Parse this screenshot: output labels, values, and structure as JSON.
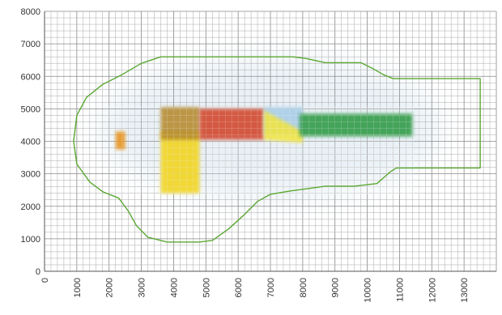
{
  "chart_data": {
    "type": "scatter",
    "title": "",
    "xlabel": "",
    "ylabel": "",
    "xlim": [
      0,
      14000
    ],
    "ylim": [
      0,
      8000
    ],
    "x_ticks": [
      "0",
      "1000",
      "2000",
      "3000",
      "4000",
      "5000",
      "6000",
      "7000",
      "8000",
      "9000",
      "10000",
      "11000",
      "12000",
      "13000"
    ],
    "y_ticks": [
      "0",
      "1000",
      "2000",
      "3000",
      "4000",
      "5000",
      "6000",
      "7000",
      "8000"
    ],
    "grid": true,
    "minor_step": 200,
    "outline_color": "#5aa832",
    "outline": [
      [
        3600,
        6600
      ],
      [
        7700,
        6600
      ],
      [
        8100,
        6550
      ],
      [
        8700,
        6420
      ],
      [
        9800,
        6420
      ],
      [
        10150,
        6250
      ],
      [
        10500,
        6050
      ],
      [
        10800,
        5930
      ],
      [
        13500,
        5930
      ],
      [
        13500,
        3180
      ],
      [
        10900,
        3180
      ],
      [
        10700,
        3050
      ],
      [
        10300,
        2700
      ],
      [
        9600,
        2620
      ],
      [
        8700,
        2620
      ],
      [
        8200,
        2550
      ],
      [
        7600,
        2470
      ],
      [
        7000,
        2370
      ],
      [
        6600,
        2150
      ],
      [
        6200,
        1750
      ],
      [
        5700,
        1300
      ],
      [
        5200,
        950
      ],
      [
        4800,
        900
      ],
      [
        3800,
        900
      ],
      [
        3200,
        1050
      ],
      [
        2850,
        1400
      ],
      [
        2600,
        1850
      ],
      [
        2300,
        2250
      ],
      [
        1800,
        2450
      ],
      [
        1400,
        2750
      ],
      [
        1000,
        3300
      ],
      [
        900,
        4000
      ],
      [
        1000,
        4800
      ],
      [
        1300,
        5350
      ],
      [
        1800,
        5750
      ],
      [
        2400,
        6050
      ],
      [
        3000,
        6400
      ],
      [
        3600,
        6600
      ]
    ],
    "shapes": [
      {
        "name": "yellow-block",
        "x": [
          3600,
          4800
        ],
        "y": [
          2400,
          4300
        ],
        "color": "#f2d41c"
      },
      {
        "name": "brown-block",
        "x": [
          3600,
          4800
        ],
        "y": [
          4050,
          5050
        ],
        "color": "#b58a2e"
      },
      {
        "name": "red-block",
        "x": [
          4800,
          6800
        ],
        "y": [
          4050,
          5000
        ],
        "color": "#d2452a"
      },
      {
        "name": "lightblue-block",
        "x": [
          6800,
          8000
        ],
        "y": [
          4200,
          5050
        ],
        "color": "#a8cde8"
      },
      {
        "name": "yellow-wedge",
        "x": [
          6800,
          8000
        ],
        "y": [
          3950,
          4950
        ],
        "color": "#f2e43a"
      },
      {
        "name": "green-tube",
        "x": [
          7900,
          11400
        ],
        "y": [
          4150,
          4850
        ],
        "color": "#2e9a45"
      },
      {
        "name": "orange-nozzle",
        "x": [
          2200,
          2500
        ],
        "y": [
          3750,
          4300
        ],
        "color": "#e8931e"
      }
    ]
  }
}
